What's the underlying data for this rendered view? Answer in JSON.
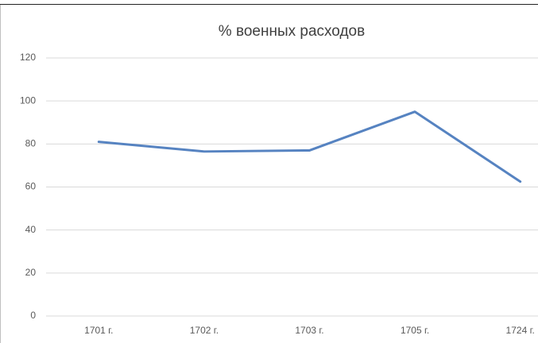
{
  "chart_data": {
    "type": "line",
    "title": "% военных расходов",
    "categories": [
      "1701 г.",
      "1702 г.",
      "1703 г.",
      "1705 г.",
      "1724 г."
    ],
    "series": [
      {
        "color": "#5683c1",
        "values": [
          81,
          76.5,
          77,
          95,
          62.5
        ]
      }
    ],
    "ylim": [
      0,
      120
    ],
    "yticks": [
      0,
      20,
      40,
      60,
      80,
      100,
      120
    ],
    "grid": true
  }
}
